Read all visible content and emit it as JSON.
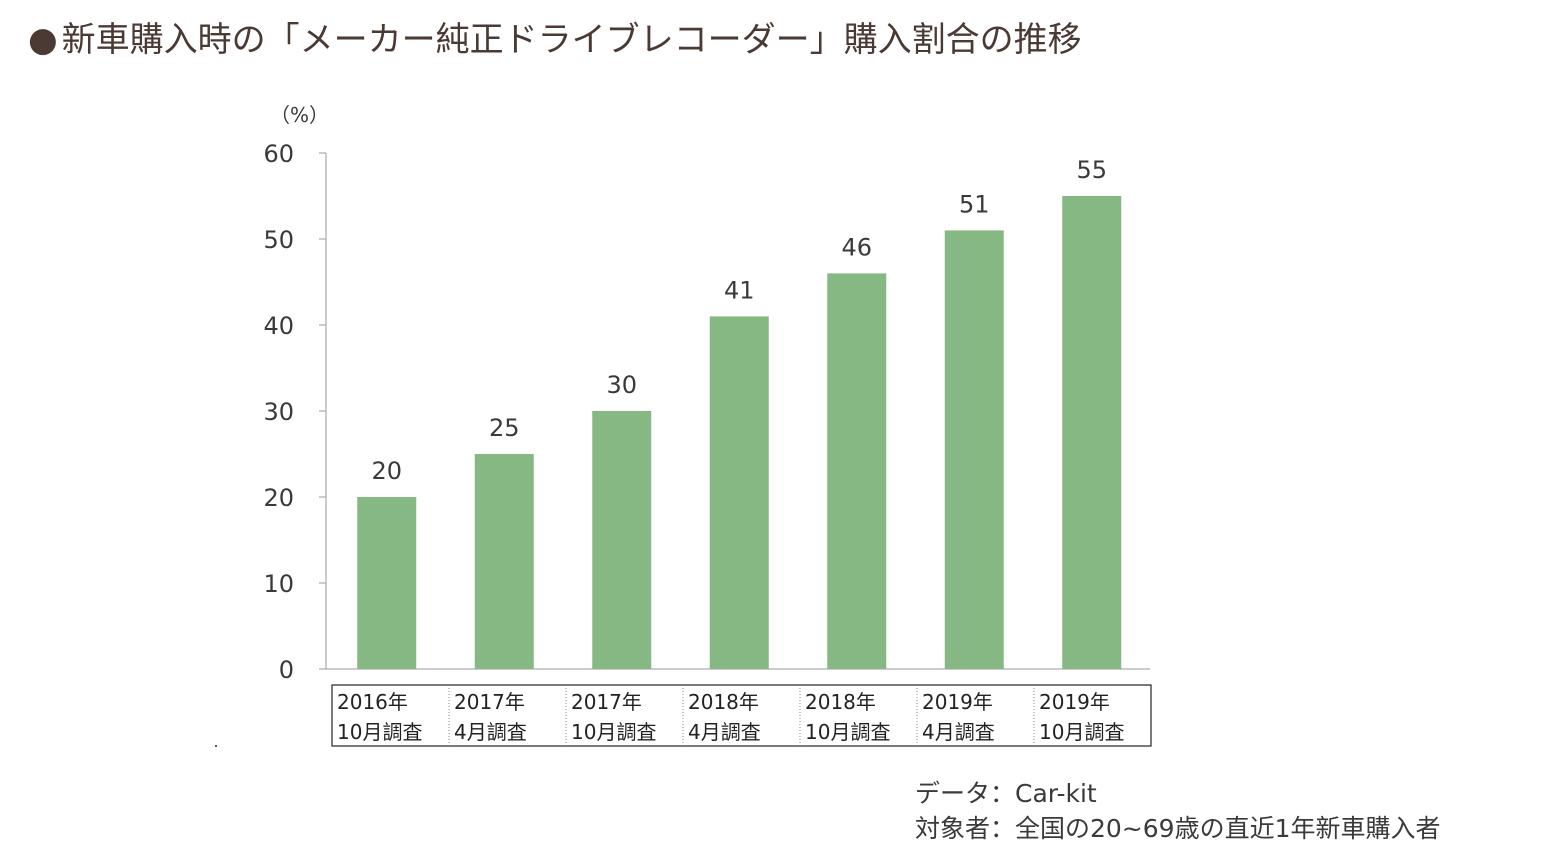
{
  "title": "新車購入時の「メーカー純正ドライブレコーダー」購入割合の推移",
  "title_bullet": "●",
  "source": {
    "data_line": "データ：Car-kit",
    "target_line": "対象者：全国の20~69歳の直近1年新車購入者"
  },
  "colors": {
    "bar": "#86b883",
    "axis": "#9a9a9a",
    "text": "#3a3a3a",
    "title": "#4a3a33"
  },
  "chart_data": {
    "type": "bar",
    "unit_label": "（%）",
    "ylim": [
      0,
      60
    ],
    "yticks": [
      0,
      10,
      20,
      30,
      40,
      50,
      60
    ],
    "categories": [
      [
        "2016年",
        "10月調査"
      ],
      [
        "2017年",
        "4月調査"
      ],
      [
        "2017年",
        "10月調査"
      ],
      [
        "2018年",
        "4月調査"
      ],
      [
        "2018年",
        "10月調査"
      ],
      [
        "2019年",
        "4月調査"
      ],
      [
        "2019年",
        "10月調査"
      ]
    ],
    "values": [
      20,
      25,
      30,
      41,
      46,
      51,
      55
    ],
    "data_labels": [
      "20",
      "25",
      "30",
      "41",
      "46",
      "51",
      "55"
    ],
    "grid": false,
    "legend": "none"
  }
}
